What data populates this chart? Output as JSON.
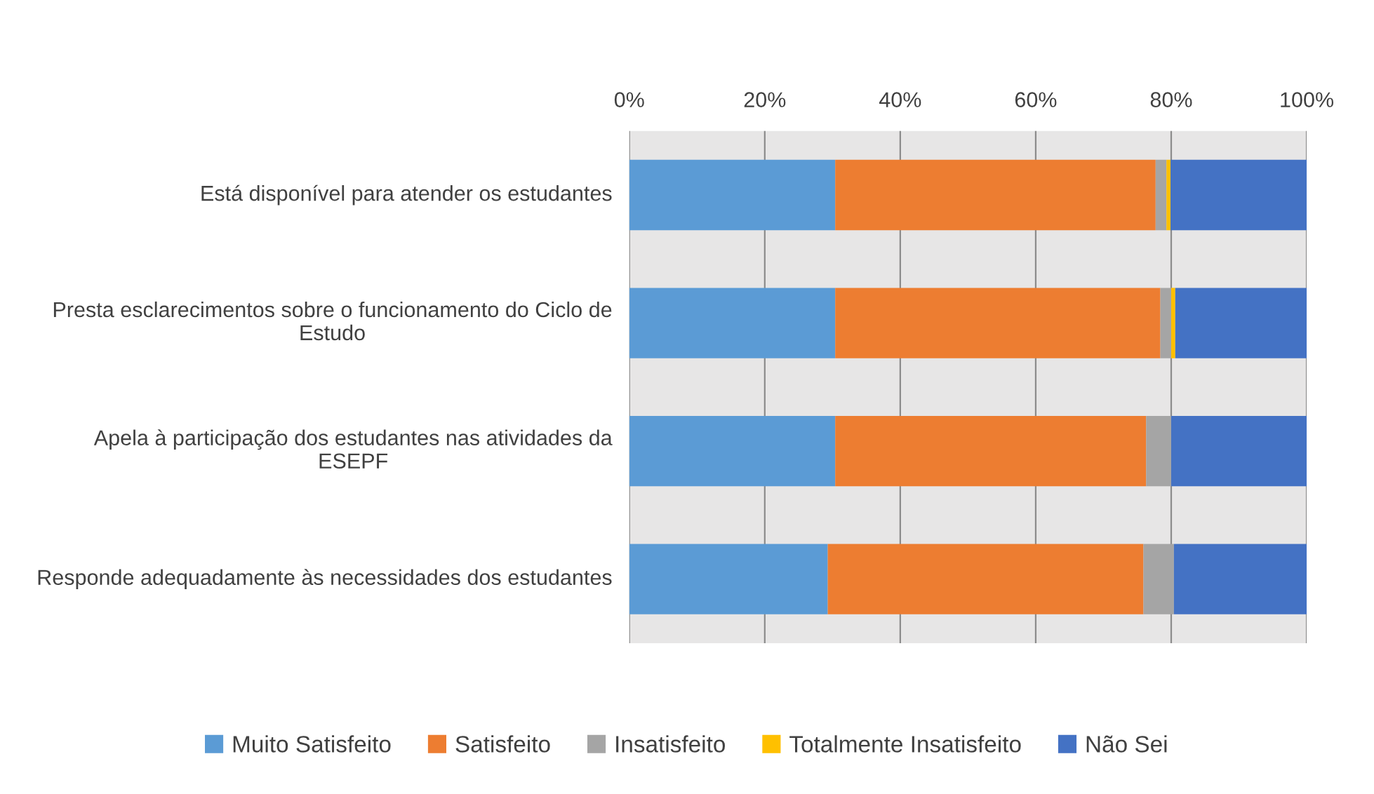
{
  "chart_data": {
    "type": "bar",
    "orientation": "horizontal",
    "stacked": true,
    "categories": [
      "Está disponível para atender os estudantes",
      "Presta esclarecimentos sobre o funcionamento do Ciclo de Estudo",
      "Apela à participação dos estudantes nas atividades da ESEPF",
      "Responde adequadamente às necessidades dos estudantes"
    ],
    "series": [
      {
        "name": "Muito Satisfeito",
        "color": "#5b9bd5",
        "values": [
          30.4,
          30.4,
          30.4,
          29.3
        ]
      },
      {
        "name": "Satisfeito",
        "color": "#ed7d31",
        "values": [
          47.3,
          48.0,
          45.9,
          46.6
        ]
      },
      {
        "name": "Insatisfeito",
        "color": "#a5a5a5",
        "values": [
          1.6,
          1.6,
          3.7,
          4.5
        ]
      },
      {
        "name": "Totalmente Insatisfeito",
        "color": "#ffc000",
        "values": [
          0.6,
          0.6,
          0,
          0
        ]
      },
      {
        "name": "Não Sei",
        "color": "#4472c4",
        "values": [
          20.1,
          19.4,
          20.0,
          19.6
        ]
      }
    ],
    "xlim": [
      0,
      100
    ],
    "xticks": [
      {
        "value": 0,
        "label": "0%"
      },
      {
        "value": 20,
        "label": "20%"
      },
      {
        "value": 40,
        "label": "40%"
      },
      {
        "value": 60,
        "label": "60%"
      },
      {
        "value": 80,
        "label": "80%"
      },
      {
        "value": 100,
        "label": "100%"
      }
    ],
    "grid": "x",
    "legend": "bottom"
  }
}
